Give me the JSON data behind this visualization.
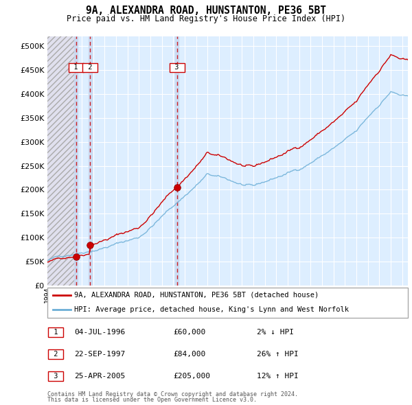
{
  "title": "9A, ALEXANDRA ROAD, HUNSTANTON, PE36 5BT",
  "subtitle": "Price paid vs. HM Land Registry's House Price Index (HPI)",
  "legend_line1": "9A, ALEXANDRA ROAD, HUNSTANTON, PE36 5BT (detached house)",
  "legend_line2": "HPI: Average price, detached house, King's Lynn and West Norfolk",
  "footnote1": "Contains HM Land Registry data © Crown copyright and database right 2024.",
  "footnote2": "This data is licensed under the Open Government Licence v3.0.",
  "transactions": [
    {
      "num": 1,
      "date": "04-JUL-1996",
      "price": 60000,
      "change": "2% ↓ HPI",
      "year": 1996.5
    },
    {
      "num": 2,
      "date": "22-SEP-1997",
      "price": 84000,
      "change": "26% ↑ HPI",
      "year": 1997.72
    },
    {
      "num": 3,
      "date": "25-APR-2005",
      "price": 205000,
      "change": "12% ↑ HPI",
      "year": 2005.32
    }
  ],
  "hpi_color": "#6baed6",
  "price_color": "#cc0000",
  "xmin": 1994,
  "xmax": 2025.5,
  "ymin": 0,
  "ymax": 520000,
  "yticks": [
    0,
    50000,
    100000,
    150000,
    200000,
    250000,
    300000,
    350000,
    400000,
    450000,
    500000
  ],
  "chart_bg": "#ddeeff",
  "hatch_bg": "#e4e4ee"
}
